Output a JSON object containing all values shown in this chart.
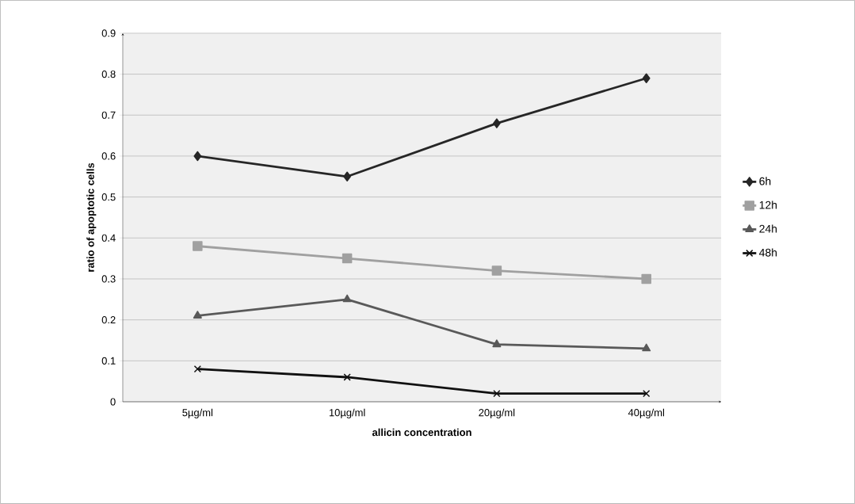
{
  "chart_data": {
    "type": "line",
    "xlabel": "allicin concentration",
    "ylabel": "ratio of apoptotic cells",
    "categories": [
      "5µg/ml",
      "10µg/ml",
      "20µg/ml",
      "40µg/ml"
    ],
    "series": [
      {
        "name": "6h",
        "color": "#262626",
        "marker": "diamond",
        "values": [
          0.6,
          0.55,
          0.68,
          0.79
        ]
      },
      {
        "name": "12h",
        "color": "#a0a0a0",
        "marker": "square",
        "values": [
          0.38,
          0.35,
          0.32,
          0.3
        ]
      },
      {
        "name": "24h",
        "color": "#595959",
        "marker": "triangle",
        "values": [
          0.21,
          0.25,
          0.14,
          0.13
        ]
      },
      {
        "name": "48h",
        "color": "#111111",
        "marker": "cross",
        "values": [
          0.08,
          0.06,
          0.02,
          0.02
        ]
      }
    ],
    "ylim": [
      0,
      0.9
    ],
    "yticks": [
      0,
      0.1,
      0.2,
      0.3,
      0.4,
      0.5,
      0.6,
      0.7,
      0.8,
      0.9
    ],
    "grid": "y",
    "legend": "right"
  }
}
